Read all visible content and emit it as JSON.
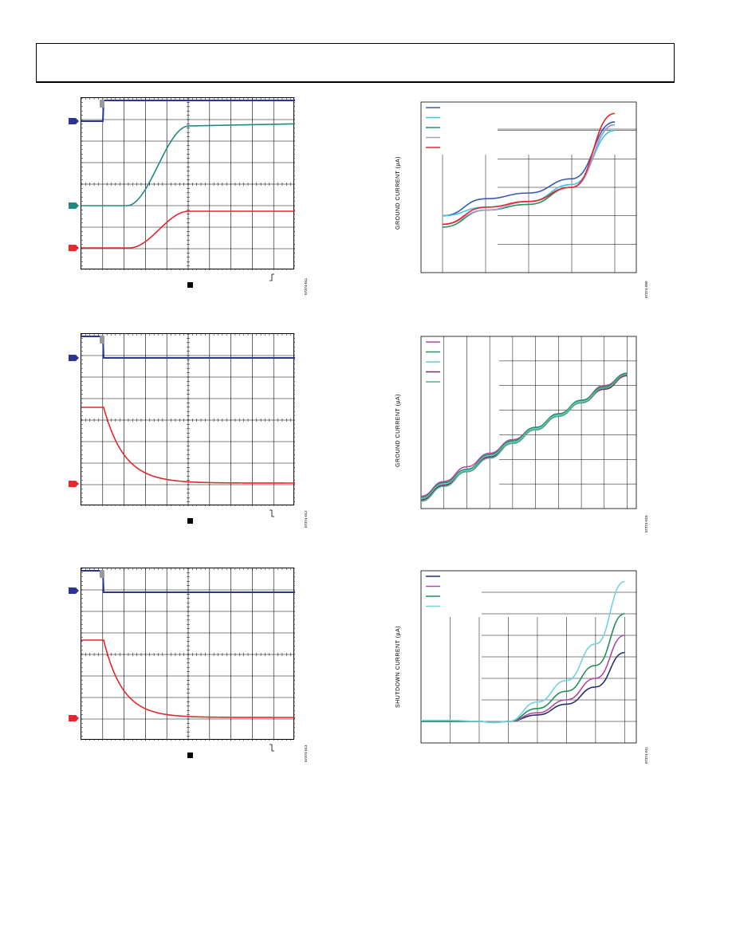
{
  "header": {
    "title": ""
  },
  "colors": {
    "navy": "#2c3591",
    "teal": "#1f8a80",
    "red": "#e8262b",
    "blue": "#3b5bb5",
    "cyan": "#3ec3ee",
    "green": "#21915a",
    "lavender": "#a79ad4",
    "magenta": "#b24aa4",
    "aqua": "#62cfd0",
    "purple": "#7a2a6a",
    "mint": "#55b087",
    "darknavy": "#27316f",
    "lightaqua": "#6fd3e0"
  },
  "scopes": [
    {
      "code": "07374-011",
      "trigger": "rising"
    },
    {
      "code": "07374-012",
      "trigger": "falling"
    },
    {
      "code": "07374-013",
      "trigger": "falling"
    }
  ],
  "chart_data": [
    {
      "type": "line",
      "ylabel": "GROUND CURRENT (µA)",
      "code": "07374-009",
      "x": [
        0,
        1,
        2,
        3,
        4
      ],
      "series": [
        {
          "color": "#3b5bb5",
          "values": [
            2.0,
            2.6,
            2.8,
            3.3,
            5.3
          ]
        },
        {
          "color": "#3ec3ee",
          "values": [
            2.0,
            2.3,
            2.5,
            3.1,
            5.0
          ]
        },
        {
          "color": "#21915a",
          "values": [
            1.6,
            2.2,
            2.4,
            3.0,
            5.2
          ]
        },
        {
          "color": "#a79ad4",
          "values": [
            1.7,
            2.2,
            2.5,
            3.0,
            5.2
          ]
        },
        {
          "color": "#e8262b",
          "values": [
            1.7,
            2.3,
            2.5,
            3.0,
            5.6
          ]
        }
      ],
      "ylim": [
        0,
        6
      ],
      "xlim": [
        -0.5,
        4.5
      ]
    },
    {
      "type": "line",
      "ylabel": "GROUND CURRENT (µA)",
      "code": "07374-010",
      "x": [
        0,
        1,
        2,
        3,
        4,
        5,
        6,
        7,
        8,
        9
      ],
      "series": [
        {
          "color": "#b24aa4",
          "values": [
            0.5,
            1.1,
            1.7,
            2.25,
            2.8,
            3.3,
            3.85,
            4.4,
            5.0,
            5.5
          ]
        },
        {
          "color": "#21915a",
          "values": [
            0.45,
            1.05,
            1.6,
            2.2,
            2.75,
            3.3,
            3.85,
            4.4,
            4.95,
            5.5
          ]
        },
        {
          "color": "#62cfd0",
          "values": [
            0.4,
            1.0,
            1.55,
            2.15,
            2.7,
            3.25,
            3.8,
            4.35,
            4.9,
            5.45
          ]
        },
        {
          "color": "#7a2a6a",
          "values": [
            0.35,
            0.95,
            1.5,
            2.1,
            2.65,
            3.2,
            3.75,
            4.3,
            4.85,
            5.4
          ]
        },
        {
          "color": "#55b087",
          "values": [
            0.3,
            0.9,
            1.5,
            2.05,
            2.65,
            3.2,
            3.75,
            4.3,
            4.9,
            5.45
          ]
        }
      ],
      "ylim": [
        0,
        7
      ],
      "xlim": [
        0,
        9.4
      ]
    },
    {
      "type": "line",
      "ylabel": "SHUTDOWN CURRENT (µA)",
      "code": "07374-011",
      "x": [
        0,
        1,
        2,
        2.5,
        3,
        4,
        5,
        6,
        7
      ],
      "series": [
        {
          "color": "#27316f",
          "values": [
            1.0,
            1.0,
            1.0,
            0.95,
            1.0,
            1.3,
            1.8,
            2.6,
            4.2
          ]
        },
        {
          "color": "#b24aa4",
          "values": [
            1.0,
            1.0,
            1.0,
            0.95,
            1.0,
            1.4,
            2.0,
            3.0,
            5.0
          ]
        },
        {
          "color": "#21915a",
          "values": [
            1.0,
            1.0,
            1.0,
            0.95,
            1.0,
            1.6,
            2.4,
            3.6,
            6.0
          ]
        },
        {
          "color": "#6fd3e0",
          "values": [
            1.05,
            1.05,
            1.0,
            0.95,
            1.0,
            1.9,
            2.9,
            4.6,
            7.5
          ]
        }
      ],
      "ylim": [
        0,
        8
      ],
      "xlim": [
        0,
        7.4
      ]
    }
  ]
}
